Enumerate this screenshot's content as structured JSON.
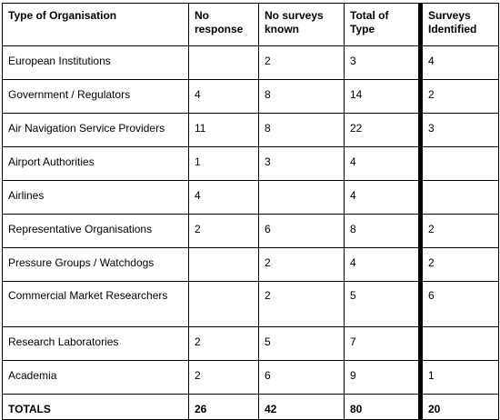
{
  "table": {
    "headers": [
      "Type of Organisation",
      "No response",
      "No surveys known",
      "Total of Type",
      "Surveys Identified"
    ],
    "rows": [
      [
        "European Institutions",
        "",
        "2",
        "3",
        "4"
      ],
      [
        "Government / Regulators",
        "4",
        "8",
        "14",
        "2"
      ],
      [
        "Air Navigation Service Providers",
        "11",
        "8",
        "22",
        "3"
      ],
      [
        "Airport Authorities",
        "1",
        "3",
        "4",
        ""
      ],
      [
        "Airlines",
        "4",
        "",
        "4",
        ""
      ],
      [
        "Representative Organisations",
        "2",
        "6",
        "8",
        "2"
      ],
      [
        "Pressure Groups / Watchdogs",
        "",
        "2",
        "4",
        "2"
      ],
      [
        "Commercial Market Researchers",
        "",
        "2",
        "5",
        "6"
      ],
      [
        "Research Laboratories",
        "2",
        "5",
        "7",
        ""
      ],
      [
        "Academia",
        "2",
        "6",
        "9",
        "1"
      ]
    ],
    "totals": [
      "TOTALS",
      "26",
      "42",
      "80",
      "20"
    ]
  }
}
